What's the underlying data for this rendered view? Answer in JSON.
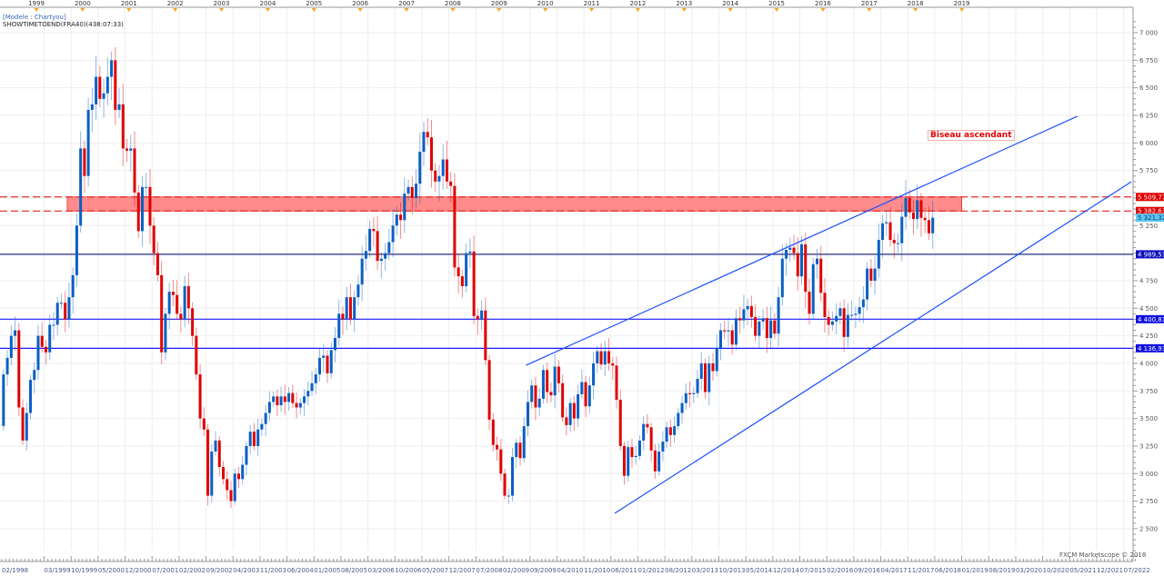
{
  "header": {
    "model": "[Modele : Chartyou]",
    "indicator": "SHOWTIMETOEND(FRA40)(438:07:33)"
  },
  "footer": "FXCM Marketscope © 2018",
  "colors": {
    "up": "#0a5fc4",
    "down": "#e00000",
    "zone": "#ff8080",
    "hline_blue": "#1a1aff",
    "hline_dark": "#1a1a7a",
    "current": "#5bc8f0"
  },
  "chart_data": {
    "type": "candlestick",
    "instrument": "FRA40",
    "timeframe": "monthly",
    "start": "1998-04",
    "close": [
      3900,
      4050,
      4250,
      4300,
      3600,
      3300,
      3550,
      3850,
      3940,
      4250,
      4150,
      4100,
      4350,
      4350,
      4550,
      4550,
      4400,
      4600,
      4800,
      5250,
      5950,
      5700,
      6300,
      6350,
      6600,
      6400,
      6450,
      6600,
      6750,
      6300,
      6350,
      5950,
      5930,
      5950,
      5550,
      5200,
      5600,
      5600,
      5250,
      5000,
      4800,
      4100,
      4450,
      4650,
      4620,
      4450,
      4400,
      4700,
      4500,
      4250,
      3900,
      3500,
      3400,
      2800,
      3200,
      3300,
      3060,
      2950,
      2850,
      2750,
      3000,
      2950,
      3080,
      3250,
      3380,
      3250,
      3400,
      3450,
      3550,
      3650,
      3700,
      3620,
      3700,
      3650,
      3730,
      3640,
      3600,
      3640,
      3700,
      3750,
      3820,
      3900,
      4050,
      4070,
      3910,
      4120,
      4230,
      4450,
      4400,
      4600,
      4400,
      4600,
      4715,
      4950,
      5020,
      5220,
      5200,
      4930,
      4950,
      5000,
      5100,
      5250,
      5350,
      5300,
      5540,
      5600,
      5500,
      5630,
      5920,
      6100,
      6050,
      5750,
      5650,
      5700,
      5850,
      5650,
      5610,
      4870,
      4790,
      4700,
      5000,
      5015,
      4430,
      4400,
      4480,
      4030,
      3490,
      3260,
      3220,
      3000,
      2800,
      2800,
      3150,
      3280,
      3140,
      3430,
      3650,
      3800,
      3600,
      3680,
      3940,
      3740,
      3710,
      3970,
      3820,
      3510,
      3440,
      3640,
      3500,
      3720,
      3830,
      3610,
      3800,
      4000,
      4110,
      3990,
      4110,
      4000,
      3980,
      3670,
      3250,
      2980,
      3240,
      3150,
      3160,
      3300,
      3450,
      3420,
      3210,
      3020,
      3200,
      3290,
      3420,
      3350,
      3430,
      3550,
      3640,
      3730,
      3720,
      3730,
      3860,
      4000,
      3740,
      4000,
      3930,
      4140,
      4300,
      4290,
      4300,
      4170,
      4410,
      4390,
      4490,
      4520,
      4420,
      4250,
      4380,
      4410,
      4230,
      4390,
      4270,
      4600,
      4950,
      5030,
      5050,
      5000,
      4790,
      5080,
      4650,
      4450,
      4900,
      4950,
      4640,
      4420,
      4350,
      4380,
      4430,
      4500,
      4240,
      4440,
      4440,
      4450,
      4510,
      4580,
      4860,
      4750,
      4860,
      5120,
      5270,
      5280,
      5120,
      5090,
      5090,
      5330,
      5500,
      5370,
      5310,
      5480,
      5320,
      5300,
      5180,
      5321.32
    ],
    "ylim": [
      2400,
      7100
    ],
    "y_ticks": [
      "7 000",
      "6 750",
      "6 500",
      "6 250",
      "6 000",
      "5 750",
      "5 500",
      "5 250",
      "5 000",
      "4 750",
      "4 500",
      "4 250",
      "4 000",
      "3 750",
      "3 500",
      "3 250",
      "3 000",
      "2 750",
      "2 500"
    ],
    "year_labels": [
      "1999",
      "2000",
      "2001",
      "2002",
      "2003",
      "2004",
      "2005",
      "2006",
      "2007",
      "2008",
      "2009",
      "2010",
      "2011",
      "2012",
      "2013",
      "2014",
      "2015",
      "2016",
      "2017",
      "2018",
      "2019"
    ],
    "first_date_label": "02/1998",
    "date_labels": [
      "03/1999",
      "10/1999",
      "05/2000",
      "12/2000",
      "07/2001",
      "02/2002",
      "09/2002",
      "04/2003",
      "11/2003",
      "06/2004",
      "01/2005",
      "08/2005",
      "03/2006",
      "10/2006",
      "05/2007",
      "12/2007",
      "07/2008",
      "02/2009",
      "09/2009",
      "04/2010",
      "11/2010",
      "06/2011",
      "01/2012",
      "08/2012",
      "03/2013",
      "10/2013",
      "05/2014",
      "12/2014",
      "07/2015",
      "02/2016",
      "09/2016",
      "04/2017",
      "11/2017",
      "06/2018",
      "01/2019",
      "08/2019",
      "03/2020",
      "10/2020",
      "05/2021",
      "12/2021",
      "07/2022"
    ],
    "levels": [
      {
        "value": 5509.77,
        "label": "5 509,77",
        "style": "dashed-red"
      },
      {
        "value": 5382.63,
        "label": "5 382,63",
        "style": "dashed-red"
      },
      {
        "value": 5321.32,
        "label": "5 321,32",
        "style": "current"
      },
      {
        "value": 4989.51,
        "label": "4 989,51",
        "style": "solid-dark"
      },
      {
        "value": 4400.81,
        "label": "4 400,81",
        "style": "solid-blue"
      },
      {
        "value": 4136.93,
        "label": "4 136,93",
        "style": "solid-blue"
      }
    ],
    "zone": {
      "from": "1999-09",
      "to": "2019-01",
      "low": 5382.63,
      "high": 5509.77
    },
    "trendlines": [
      {
        "from": [
          "2009-08",
          3983
        ],
        "to": [
          "2021-07",
          6242
        ]
      },
      {
        "from": [
          "2011-07",
          2640
        ],
        "to": [
          "2022-09",
          5648
        ]
      }
    ],
    "annotation": "Biseau ascendant"
  }
}
